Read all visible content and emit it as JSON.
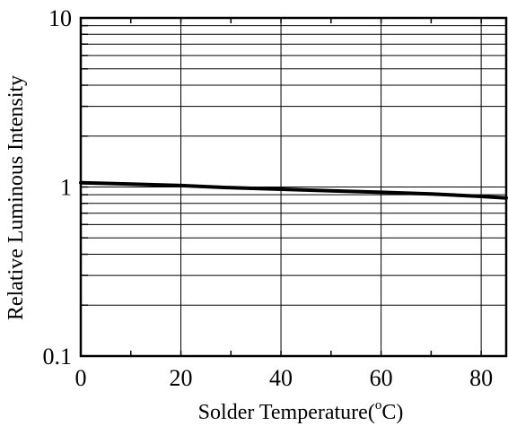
{
  "chart_data": {
    "type": "line",
    "title": "",
    "xlabel": "Solder Temperature(",
    "xlabel_unit_sup": "o",
    "xlabel_unit_tail": "C)",
    "ylabel": "Relative Luminous Intensity",
    "xlim": [
      0,
      85
    ],
    "ylim": [
      0.1,
      10
    ],
    "yscale": "log",
    "grid": true,
    "x_ticks": [
      0,
      20,
      40,
      60,
      80
    ],
    "x_tick_labels": [
      "0",
      "20",
      "40",
      "60",
      "80"
    ],
    "y_ticks": [
      0.1,
      1,
      10
    ],
    "y_tick_labels": [
      "0.1",
      "1",
      "10"
    ],
    "series": [
      {
        "x": [
          0,
          10,
          20,
          30,
          40,
          50,
          60,
          70,
          80,
          85
        ],
        "y": [
          1.06,
          1.04,
          1.02,
          0.99,
          0.97,
          0.95,
          0.93,
          0.91,
          0.88,
          0.86
        ]
      }
    ]
  }
}
